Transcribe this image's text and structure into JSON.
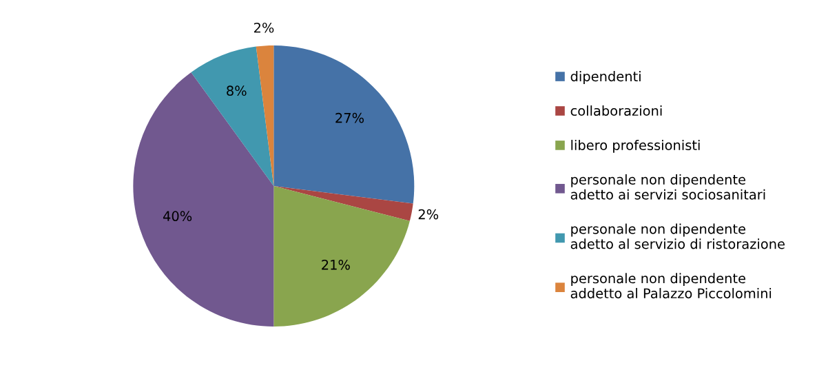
{
  "chart_data": {
    "type": "pie",
    "categories": [
      "dipendenti",
      "collaborazioni",
      "libero professionisti",
      "personale non dipendente\nadetto ai servizi sociosanitari",
      "personale non dipendente\nadetto al servizio di ristorazione",
      "personale non dipendente\naddetto al Palazzo Piccolomini"
    ],
    "values": [
      27,
      2,
      21,
      40,
      8,
      2
    ],
    "colors": [
      "#4572a7",
      "#aa4643",
      "#89a54e",
      "#71588f",
      "#4198af",
      "#db843d"
    ],
    "value_labels": [
      "27%",
      "2%",
      "21%",
      "40%",
      "8%",
      "2%"
    ],
    "legend": "right"
  }
}
